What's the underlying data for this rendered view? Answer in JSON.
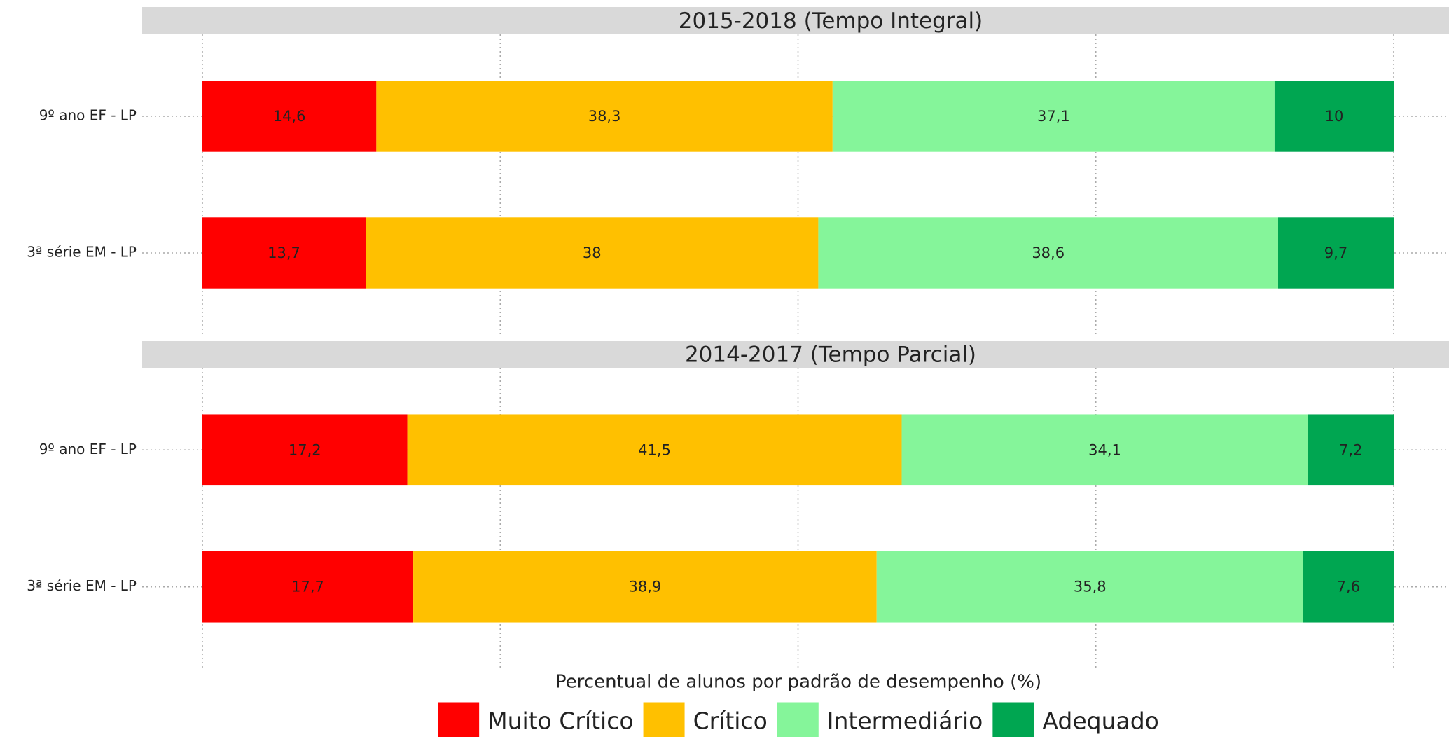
{
  "chart_data": {
    "type": "bar",
    "orientation": "horizontal",
    "stacked": true,
    "xlabel": "Percentual de alunos por padrão de desempenho (%)",
    "xlim": [
      0,
      100
    ],
    "xticks": [
      0,
      25,
      50,
      75,
      100
    ],
    "grid": true,
    "legend": "bottom",
    "panels": [
      {
        "title": "2015-2018 (Tempo Integral)",
        "categories": [
          "9º ano EF - LP",
          "3ª série EM - LP"
        ],
        "series": [
          {
            "name": "Muito Crítico",
            "color": "#ff0000",
            "values": [
              14.6,
              13.7
            ],
            "value_labels": [
              "14,6",
              "13,7"
            ]
          },
          {
            "name": "Crítico",
            "color": "#ffc000",
            "values": [
              38.3,
              38
            ],
            "value_labels": [
              "38,3",
              "38"
            ]
          },
          {
            "name": "Intermediário",
            "color": "#85f59a",
            "values": [
              37.1,
              38.6
            ],
            "value_labels": [
              "37,1",
              "38,6"
            ]
          },
          {
            "name": "Adequado",
            "color": "#00a651",
            "values": [
              10,
              9.7
            ],
            "value_labels": [
              "10",
              "9,7"
            ]
          }
        ]
      },
      {
        "title": "2014-2017 (Tempo Parcial)",
        "categories": [
          "9º ano EF - LP",
          "3ª série EM - LP"
        ],
        "series": [
          {
            "name": "Muito Crítico",
            "color": "#ff0000",
            "values": [
              17.2,
              17.7
            ],
            "value_labels": [
              "17,2",
              "17,7"
            ]
          },
          {
            "name": "Crítico",
            "color": "#ffc000",
            "values": [
              41.5,
              38.9
            ],
            "value_labels": [
              "41,5",
              "38,9"
            ]
          },
          {
            "name": "Intermediário",
            "color": "#85f59a",
            "values": [
              34.1,
              35.8
            ],
            "value_labels": [
              "34,1",
              "35,8"
            ]
          },
          {
            "name": "Adequado",
            "color": "#00a651",
            "values": [
              7.2,
              7.6
            ],
            "value_labels": [
              "7,2",
              "7,6"
            ]
          }
        ]
      }
    ]
  }
}
